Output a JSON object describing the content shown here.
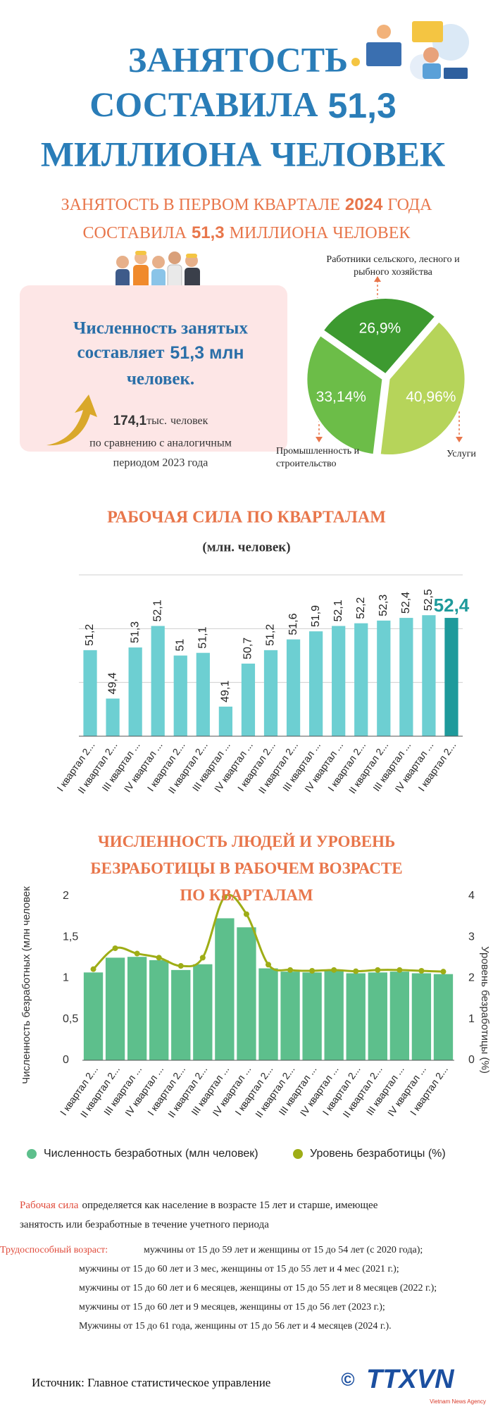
{
  "header": {
    "title": {
      "line1": "ЗАНЯТОСТЬ",
      "line2": "СОСТАВИЛА",
      "number": "51,3",
      "line3": "МИЛЛИОНА ЧЕЛОВЕК"
    },
    "subtitle": {
      "part1": "ЗАНЯТОСТЬ В ПЕРВОМ КВАРТАЛЕ",
      "year": "2024",
      "part2": "ГОДА",
      "part3": "СОСТАВИЛА",
      "number": "51,3",
      "part4": "МИЛЛИОНА ЧЕЛОВЕК"
    }
  },
  "summary": {
    "line1": "Численность занятых",
    "line2": "составляет",
    "number": "51,3 млн",
    "line3": "человек.",
    "increase": "174,1",
    "increase_unit": "тыс.",
    "increase_text": "человек",
    "comparison1": "по сравнению с аналогичным",
    "comparison2": "периодом 2023 года"
  },
  "chart_data": [
    {
      "type": "pie",
      "categories": [
        "Работники сельского, лесного и рыбного хозяйства",
        "Услуги",
        "Промышленность и строительство"
      ],
      "values": [
        26.9,
        40.96,
        33.14
      ],
      "value_labels": [
        "26,9%",
        "40,96%",
        "33,14%"
      ],
      "colors": [
        "#3d9a30",
        "#b6d45a",
        "#6cbd48"
      ]
    },
    {
      "type": "bar",
      "title": "РАБОЧАЯ СИЛА ПО КВАРТАЛАМ",
      "subtitle": "(млн. человек)",
      "categories": [
        "I квартал 2...",
        "II квартал 2...",
        "III квартал ...",
        "IV квартал ...",
        "I квартал 2...",
        "II квартал 2...",
        "III квартал ...",
        "IV квартал ...",
        "I квартал 2...",
        "II квартал 2...",
        "III квартал ...",
        "IV квартал ...",
        "I квартал 2...",
        "II квартал 2...",
        "III квартал ...",
        "IV квартал ...",
        "I квартал 2..."
      ],
      "values": [
        51.2,
        49.4,
        51.3,
        52.1,
        51,
        51.1,
        49.1,
        50.7,
        51.2,
        51.6,
        51.9,
        52.1,
        52.2,
        52.3,
        52.4,
        52.5,
        52.4
      ],
      "value_labels": [
        "51,2",
        "49,4",
        "51,3",
        "52,1",
        "51",
        "51,1",
        "49,1",
        "50,7",
        "51,2",
        "51,6",
        "51,9",
        "52,1",
        "52,2",
        "52,3",
        "52,4",
        "52,5",
        "52,4"
      ],
      "colors": [
        "#6dcfd2",
        "#6dcfd2",
        "#6dcfd2",
        "#6dcfd2",
        "#6dcfd2",
        "#6dcfd2",
        "#6dcfd2",
        "#6dcfd2",
        "#6dcfd2",
        "#6dcfd2",
        "#6dcfd2",
        "#6dcfd2",
        "#6dcfd2",
        "#6dcfd2",
        "#6dcfd2",
        "#6dcfd2",
        "#1e9a9b"
      ],
      "ylim": [
        48,
        54
      ],
      "yticks": [
        48,
        50,
        52,
        54
      ],
      "ytick_labels": false,
      "grid": true
    },
    {
      "type": "bar",
      "title": "ЧИСЛЕННОСТЬ ЛЮДЕЙ И УРОВЕНЬ БЕЗРАБОТИЦЫ В РАБОЧЕМ ВОЗРАСТЕ ПО КВАРТАЛАМ",
      "ylabel": "Численность безработных (млн человек",
      "y2label": "Уровень безработицы (%)",
      "categories": [
        "I квартал 2...",
        "II квартал 2...",
        "III квартал ...",
        "IV квартал ...",
        "I квартал 2...",
        "II квартал 2...",
        "III квартал ...",
        "IV квартал ...",
        "I квартал 2...",
        "II квартал 2...",
        "III квартал ...",
        "IV квартал ...",
        "I квартал 2...",
        "II квартал 2...",
        "III квартал ...",
        "IV квартал ...",
        "I квартал 2..."
      ],
      "series": [
        {
          "name": "Численность безработных (млн человек)",
          "type": "bar",
          "color": "#5dbf8c",
          "values": [
            1.07,
            1.25,
            1.26,
            1.22,
            1.1,
            1.17,
            1.73,
            1.62,
            1.12,
            1.08,
            1.07,
            1.09,
            1.06,
            1.07,
            1.08,
            1.06,
            1.05
          ]
        },
        {
          "name": "Уровень безработицы (%)",
          "type": "line",
          "axis": "y2",
          "color": "#9ead16",
          "values": [
            2.22,
            2.73,
            2.6,
            2.5,
            2.3,
            2.5,
            3.98,
            3.56,
            2.33,
            2.2,
            2.18,
            2.2,
            2.17,
            2.2,
            2.2,
            2.18,
            2.16
          ]
        }
      ],
      "ylim": [
        0,
        2
      ],
      "yticks": [
        0,
        {
          "value": 0.5,
          "label": "0,5"
        },
        1,
        {
          "value": 1.5,
          "label": "1,5"
        },
        2
      ],
      "y2lim": [
        0,
        4
      ],
      "y2ticks": [
        0,
        1,
        2,
        3,
        4
      ],
      "grid": false,
      "legend": "bottom"
    }
  ],
  "notes": {
    "labor_force_term": "Рабочая сила",
    "labor_force_line1": "определяется как население в возрасте 15 лет и старше, имеющее",
    "labor_force_line2": "занятость или безработные  в течение учетного периода",
    "working_age_term": "Трудоспособный возраст:",
    "working_age_lines": [
      "мужчины от 15 до 59 лет и женщины от 15 до 54 лет (с 2020 года);",
      "мужчины от 15 до 60 лет и 3 мес, женщины от 15 до 55 лет и 4 мес (2021 г.);",
      "мужчины от 15 до 60 лет и 6 месяцев, женщины от 15 до 55 лет и 8 месяцев (2022 г.);",
      "мужчины от 15 до 60 лет и 9 месяцев, женщины от 15 до 56 лет (2023 г.);",
      "Мужчины от 15 до 61 года, женщины от 15 до 56 лет и 4 месяцев (2024 г.)."
    ]
  },
  "footer": {
    "source": "Источник: Главное статистическое управление",
    "copyright": "©",
    "logo": "TTXVN",
    "agency": "Vietnam News Agency"
  }
}
